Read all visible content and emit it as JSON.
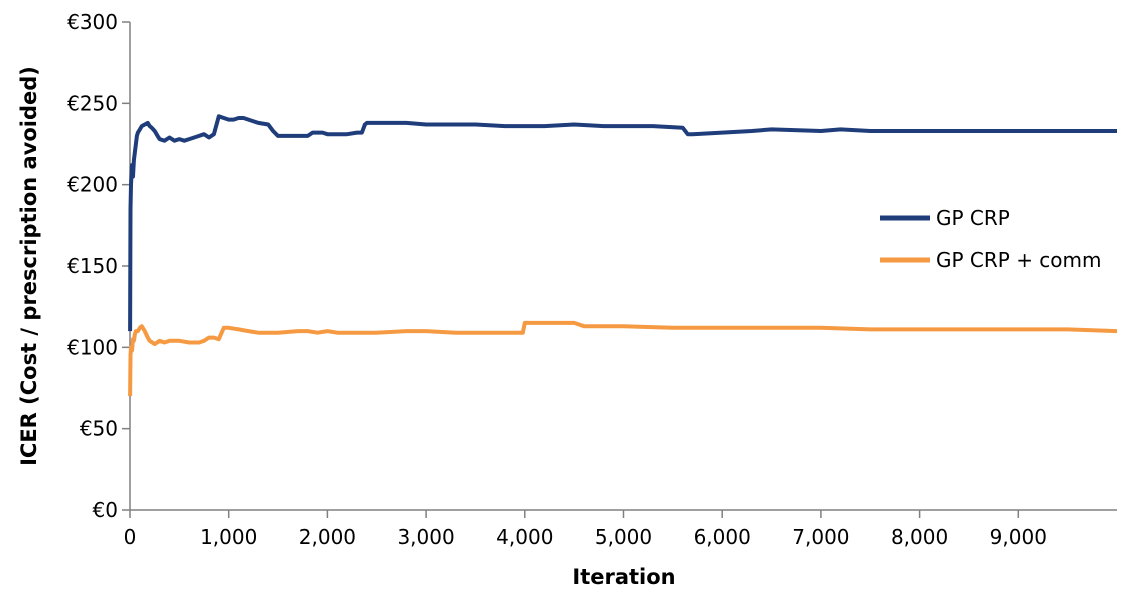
{
  "chart_data": {
    "type": "line",
    "title": "",
    "xlabel": "Iteration",
    "ylabel": "ICER (Cost / prescription avoided)",
    "xlim": [
      0,
      10000
    ],
    "ylim": [
      0,
      300
    ],
    "x_ticks": [
      0,
      1000,
      2000,
      3000,
      4000,
      5000,
      6000,
      7000,
      8000,
      9000
    ],
    "x_tick_labels": [
      "0",
      "1,000",
      "2,000",
      "3,000",
      "4,000",
      "5,000",
      "6,000",
      "7,000",
      "8,000",
      "9,000"
    ],
    "y_ticks": [
      0,
      50,
      100,
      150,
      200,
      250,
      300
    ],
    "y_tick_labels": [
      "€0",
      "€50",
      "€100",
      "€150",
      "€200",
      "€250",
      "€300"
    ],
    "grid": false,
    "legend_position": "right",
    "series": [
      {
        "name": "GP CRP",
        "color": "#1f3d7a",
        "x": [
          1,
          5,
          10,
          20,
          30,
          40,
          50,
          60,
          70,
          80,
          100,
          120,
          150,
          180,
          200,
          220,
          250,
          280,
          300,
          350,
          400,
          450,
          500,
          550,
          600,
          650,
          700,
          750,
          800,
          850,
          900,
          950,
          1000,
          1050,
          1100,
          1150,
          1200,
          1300,
          1400,
          1450,
          1500,
          1600,
          1700,
          1800,
          1850,
          1900,
          1950,
          2000,
          2100,
          2200,
          2300,
          2350,
          2380,
          2400,
          2500,
          2600,
          2800,
          3000,
          3200,
          3500,
          3800,
          4000,
          4200,
          4500,
          4800,
          5000,
          5300,
          5600,
          5650,
          5700,
          6000,
          6300,
          6500,
          7000,
          7200,
          7500,
          8000,
          8500,
          9000,
          9500,
          10000
        ],
        "values": [
          110,
          185,
          200,
          212,
          205,
          215,
          220,
          225,
          230,
          232,
          234,
          236,
          237,
          238,
          236,
          235,
          233,
          230,
          228,
          227,
          229,
          227,
          228,
          227,
          228,
          229,
          230,
          231,
          229,
          231,
          242,
          241,
          240,
          240,
          241,
          241,
          240,
          238,
          237,
          233,
          230,
          230,
          230,
          230,
          232,
          232,
          232,
          231,
          231,
          231,
          232,
          232,
          237,
          238,
          238,
          238,
          238,
          237,
          237,
          237,
          236,
          236,
          236,
          237,
          236,
          236,
          236,
          235,
          231,
          231,
          232,
          233,
          234,
          233,
          234,
          233,
          233,
          233,
          233,
          233,
          233
        ]
      },
      {
        "name": "GP CRP + comm",
        "color": "#f59a42",
        "x": [
          1,
          5,
          10,
          20,
          30,
          40,
          50,
          60,
          80,
          100,
          120,
          150,
          180,
          200,
          250,
          300,
          350,
          400,
          500,
          600,
          700,
          750,
          800,
          850,
          900,
          950,
          1000,
          1100,
          1200,
          1300,
          1500,
          1700,
          1800,
          1900,
          2000,
          2100,
          2300,
          2500,
          2800,
          3000,
          3300,
          3600,
          3900,
          3980,
          4000,
          4200,
          4400,
          4500,
          4600,
          5000,
          5500,
          6000,
          6500,
          7000,
          7500,
          8000,
          8500,
          9000,
          9500,
          10000
        ],
        "values": [
          70,
          95,
          100,
          98,
          105,
          104,
          108,
          110,
          110,
          112,
          113,
          110,
          106,
          104,
          102,
          104,
          103,
          104,
          104,
          103,
          103,
          104,
          106,
          106,
          105,
          112,
          112,
          111,
          110,
          109,
          109,
          110,
          110,
          109,
          110,
          109,
          109,
          109,
          110,
          110,
          109,
          109,
          109,
          109,
          115,
          115,
          115,
          115,
          113,
          113,
          112,
          112,
          112,
          112,
          111,
          111,
          111,
          111,
          111,
          110
        ]
      }
    ]
  }
}
